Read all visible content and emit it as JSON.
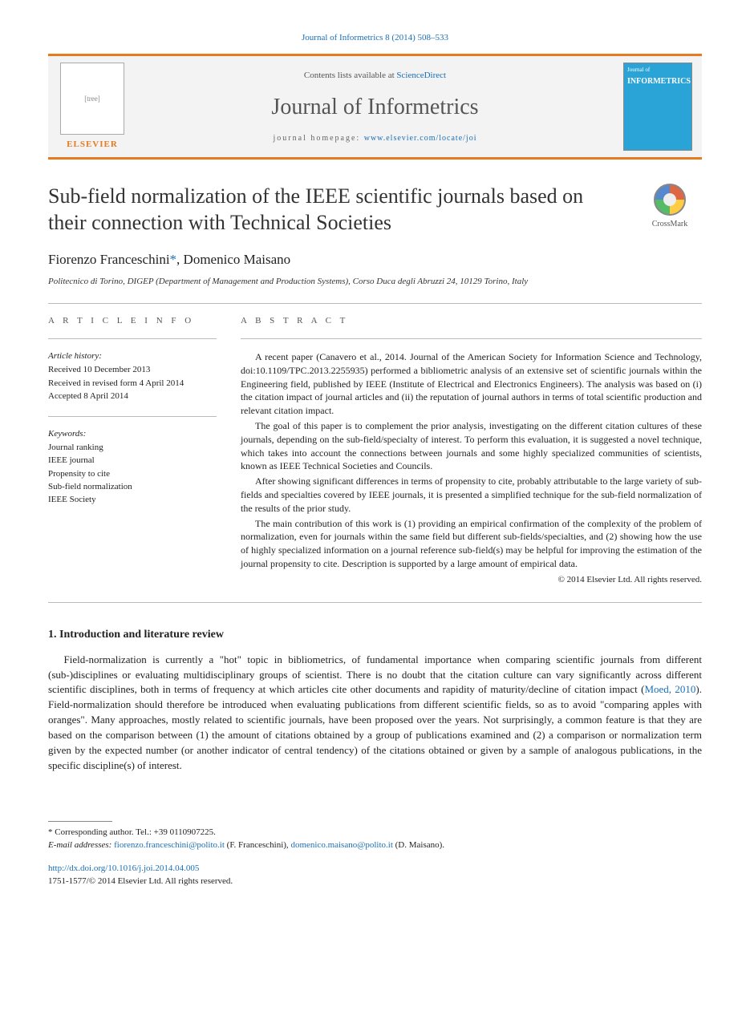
{
  "colors": {
    "accent_orange": "#e67a1f",
    "link_blue": "#1a6fb5",
    "cover_blue": "#2aa3d6",
    "band_bg": "#f3f3f3",
    "text_primary": "#222222",
    "text_muted": "#555555",
    "divider": "#bbbbbb"
  },
  "header": {
    "citation_line": "Journal of Informetrics 8 (2014) 508–533",
    "contents_prefix": "Contents lists available at ",
    "contents_link_text": "ScienceDirect",
    "journal_title": "Journal of Informetrics",
    "homepage_prefix": "journal homepage: ",
    "homepage_url_text": "www.elsevier.com/locate/joi",
    "publisher_word": "ELSEVIER",
    "cover_top": "Journal of",
    "cover_title": "INFORMETRICS"
  },
  "article": {
    "title": "Sub-field normalization of the IEEE scientific journals based on their connection with Technical Societies",
    "crossmark_label": "CrossMark",
    "authors_html": "Fiorenzo Franceschini",
    "author2": ", Domenico Maisano",
    "corr_marker": "*",
    "affiliation": "Politecnico di Torino, DIGEP (Department of Management and Production Systems), Corso Duca degli Abruzzi 24, 10129 Torino, Italy"
  },
  "article_info": {
    "heading": "A R T I C L E    I N F O",
    "history_label": "Article history:",
    "history_lines": [
      "Received 10 December 2013",
      "Received in revised form 4 April 2014",
      "Accepted 8 April 2014"
    ],
    "keywords_label": "Keywords:",
    "keywords": [
      "Journal ranking",
      "IEEE journal",
      "Propensity to cite",
      "Sub-field normalization",
      "IEEE Society"
    ]
  },
  "abstract": {
    "heading": "A B S T R A C T",
    "paragraphs": [
      "A recent paper (Canavero et al., 2014. Journal of the American Society for Information Science and Technology, doi:10.1109/TPC.2013.2255935) performed a bibliometric analysis of an extensive set of scientific journals within the Engineering field, published by IEEE (Institute of Electrical and Electronics Engineers). The analysis was based on (i) the citation impact of journal articles and (ii) the reputation of journal authors in terms of total scientific production and relevant citation impact.",
      "The goal of this paper is to complement the prior analysis, investigating on the different citation cultures of these journals, depending on the sub-field/specialty of interest. To perform this evaluation, it is suggested a novel technique, which takes into account the connections between journals and some highly specialized communities of scientists, known as IEEE Technical Societies and Councils.",
      "After showing significant differences in terms of propensity to cite, probably attributable to the large variety of sub-fields and specialties covered by IEEE journals, it is presented a simplified technique for the sub-field normalization of the results of the prior study.",
      "The main contribution of this work is (1) providing an empirical confirmation of the complexity of the problem of normalization, even for journals within the same field but different sub-fields/specialties, and (2) showing how the use of highly specialized information on a journal reference sub-field(s) may be helpful for improving the estimation of the journal propensity to cite. Description is supported by a large amount of empirical data."
    ],
    "copyright": "© 2014 Elsevier Ltd. All rights reserved."
  },
  "body": {
    "section1_heading": "1.  Introduction and literature review",
    "section1_para": "Field-normalization is currently a \"hot\" topic in bibliometrics, of fundamental importance when comparing scientific journals from different (sub-)disciplines or evaluating multidisciplinary groups of scientist. There is no doubt that the citation culture can vary significantly across different scientific disciplines, both in terms of frequency at which articles cite other documents and rapidity of maturity/decline of citation impact (",
    "section1_cite": "Moed, 2010",
    "section1_para_tail": "). Field-normalization should therefore be introduced when evaluating publications from different scientific fields, so as to avoid \"comparing apples with oranges\". Many approaches, mostly related to scientific journals, have been proposed over the years. Not surprisingly, a common feature is that they are based on the comparison between (1) the amount of citations obtained by a group of publications examined and (2) a comparison or normalization term given by the expected number (or another indicator of central tendency) of the citations obtained or given by a sample of analogous publications, in the specific discipline(s) of interest."
  },
  "footnotes": {
    "corr_line": "*   Corresponding author. Tel.: +39 0110907225.",
    "email_label": "E-mail addresses: ",
    "email1": "fiorenzo.franceschini@polito.it",
    "email1_paren": " (F. Franceschini), ",
    "email2": "domenico.maisano@polito.it",
    "email2_paren": " (D. Maisano)."
  },
  "footer": {
    "doi_url": "http://dx.doi.org/10.1016/j.joi.2014.04.005",
    "issn_line": "1751-1577/© 2014 Elsevier Ltd. All rights reserved."
  },
  "typography": {
    "article_title_pt": 26,
    "journal_title_pt": 28,
    "body_pt": 13,
    "authors_pt": 17,
    "info_pt": 11,
    "abstract_pt": 12
  }
}
